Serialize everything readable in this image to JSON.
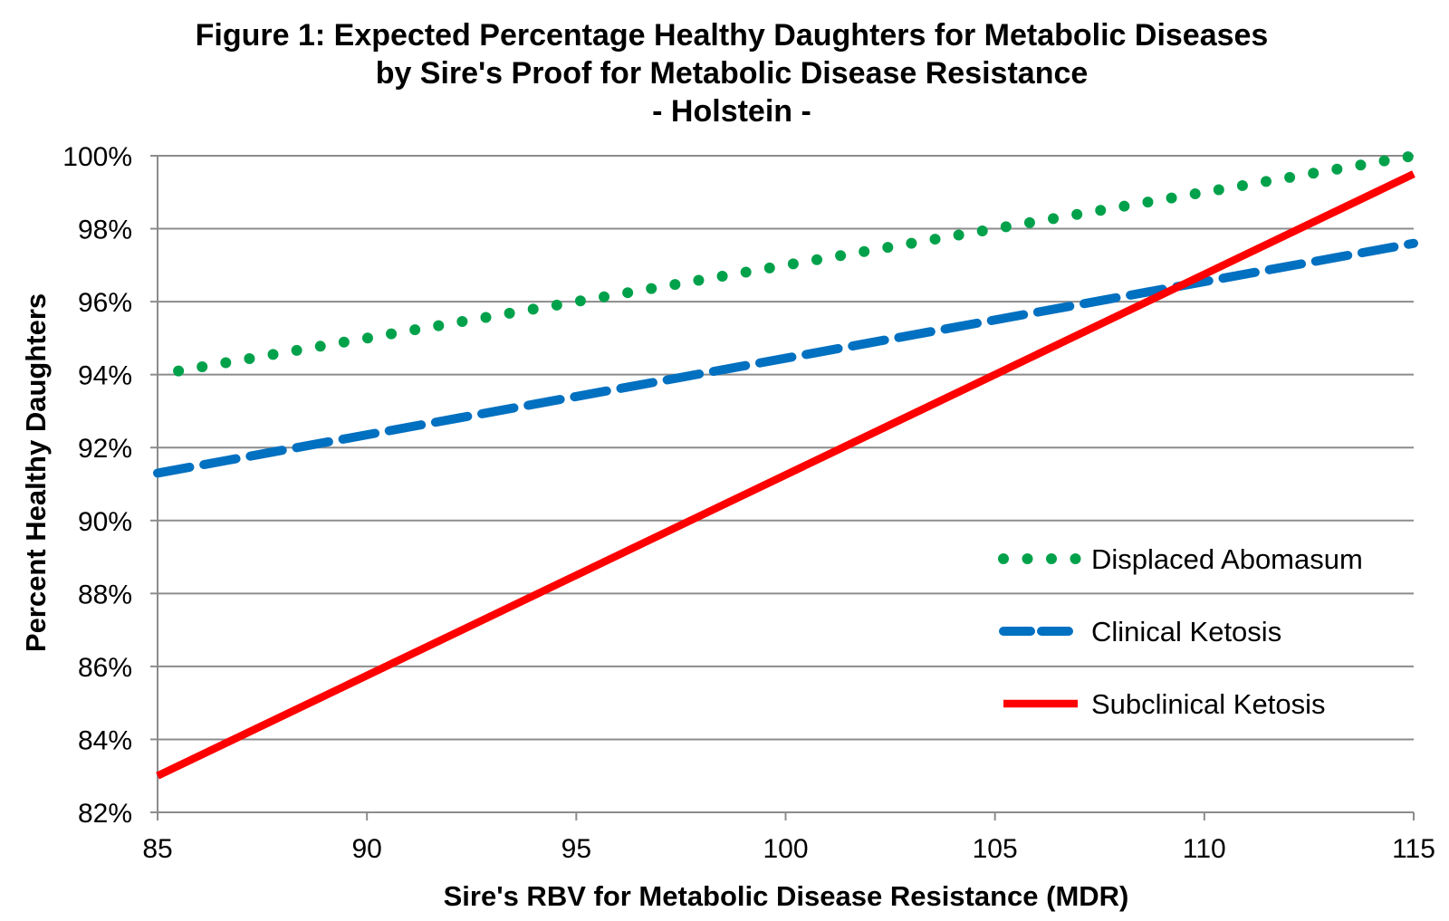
{
  "chart_data": {
    "type": "line",
    "title_lines": [
      "Figure 1: Expected Percentage Healthy Daughters for Metabolic Diseases",
      "by Sire's Proof for Metabolic Disease Resistance",
      "- Holstein -"
    ],
    "xlabel": "Sire's RBV for Metabolic Disease Resistance (MDR)",
    "ylabel": "Percent Healthy Daughters",
    "xlim": [
      85,
      115
    ],
    "ylim": [
      82,
      100
    ],
    "x_ticks": [
      85,
      90,
      95,
      100,
      105,
      110,
      115
    ],
    "x_tick_labels": [
      "85",
      "90",
      "95",
      "100",
      "105",
      "110",
      "115"
    ],
    "y_ticks": [
      82,
      84,
      86,
      88,
      90,
      92,
      94,
      96,
      98,
      100
    ],
    "y_tick_labels": [
      "82%",
      "84%",
      "86%",
      "88%",
      "90%",
      "92%",
      "94%",
      "96%",
      "98%",
      "100%"
    ],
    "grid": "horizontal",
    "legend_position": "bottom-right",
    "series": [
      {
        "name": "Displaced Abomasum",
        "style": "dotted",
        "color": "#00A14B",
        "x": [
          85.5,
          115
        ],
        "y": [
          94.1,
          100.0
        ]
      },
      {
        "name": "Clinical Ketosis",
        "style": "dashed",
        "color": "#0070C0",
        "x": [
          85,
          115
        ],
        "y": [
          91.3,
          97.6
        ]
      },
      {
        "name": "Subclinical Ketosis",
        "style": "solid",
        "color": "#FF0000",
        "x": [
          85,
          115
        ],
        "y": [
          83.0,
          99.5
        ]
      }
    ]
  }
}
